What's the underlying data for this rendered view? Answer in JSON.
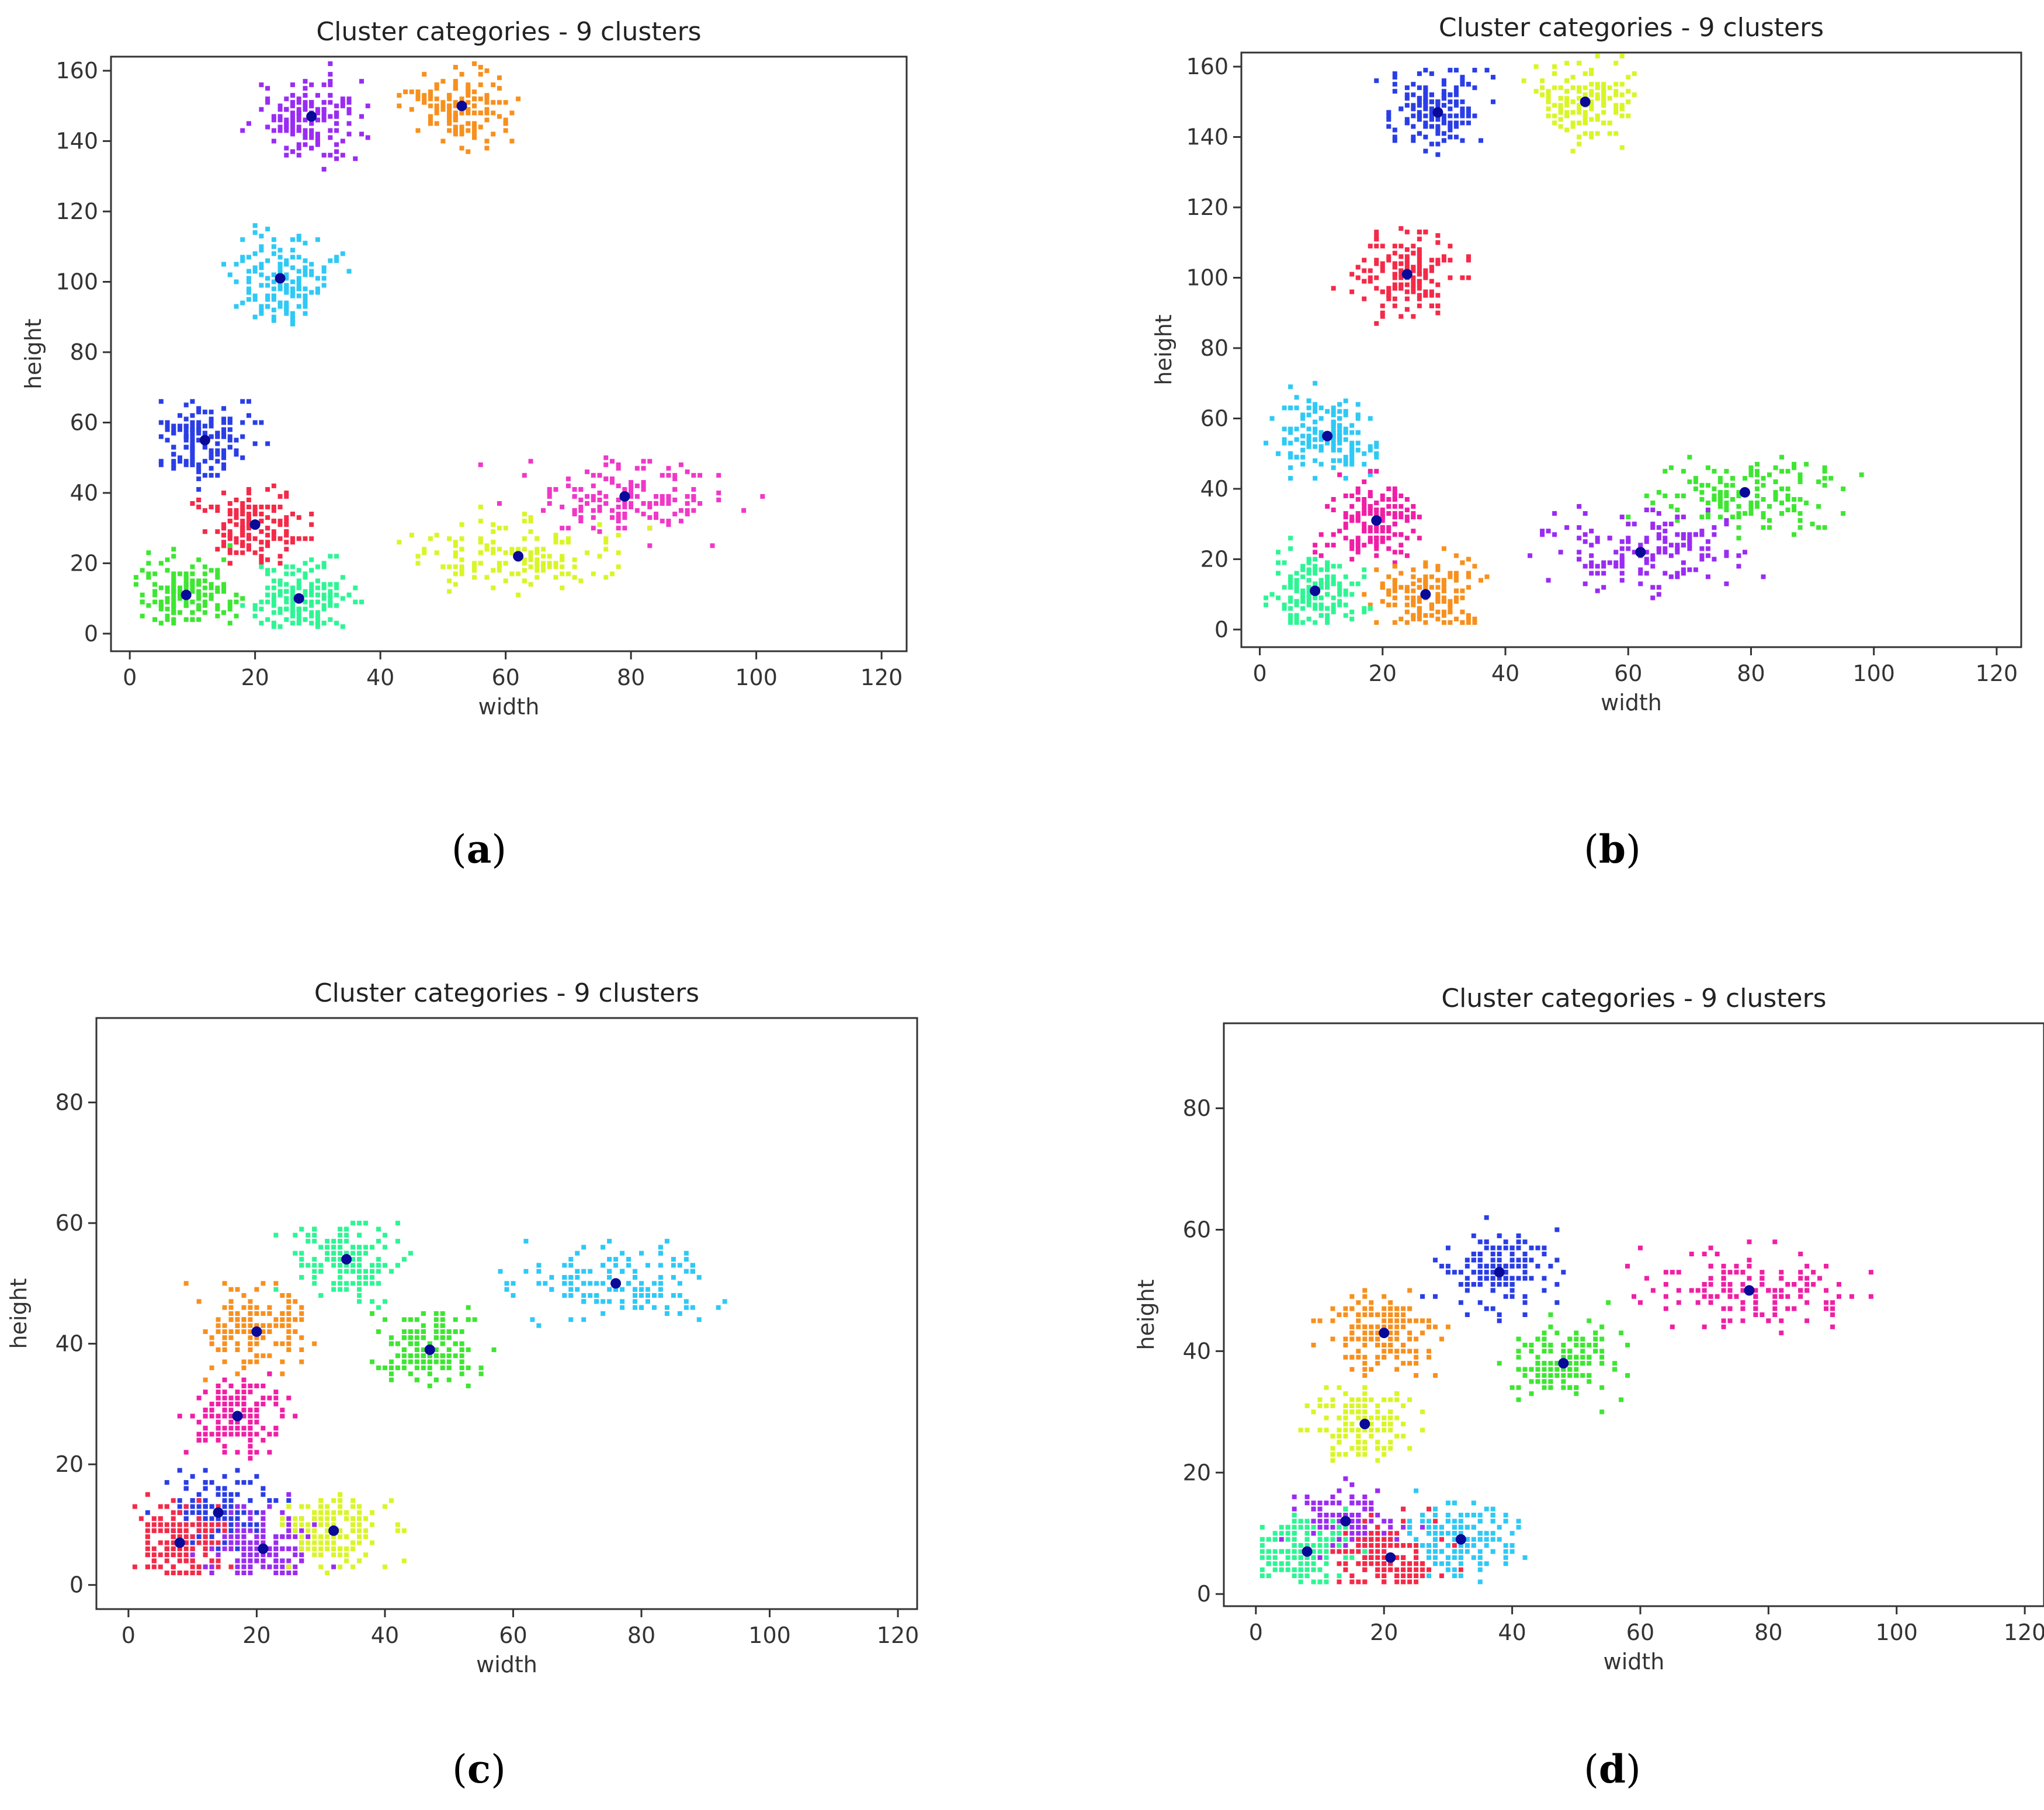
{
  "captions": {
    "a": {
      "open": "(",
      "letter": "a",
      "close": ")"
    },
    "b": {
      "open": "(",
      "letter": "b",
      "close": ")"
    },
    "c": {
      "open": "(",
      "letter": "c",
      "close": ")"
    },
    "d": {
      "open": "(",
      "letter": "d",
      "close": ")"
    }
  },
  "colors": {
    "blue": "#2a3ee6",
    "red": "#f42a48",
    "magenta": "#f038c8",
    "pink": "#f01fa6",
    "cyan": "#2fc9f5",
    "green": "#3ee632",
    "lime": "#d9f526",
    "orange": "#f7901e",
    "purple": "#9a2cf2",
    "mint": "#2ef594",
    "centroid": "#0a0a9a"
  },
  "chart_data": [
    {
      "id": "a",
      "type": "scatter",
      "title": "Cluster categories - 9 clusters",
      "xlabel": "width",
      "ylabel": "height",
      "xlim": [
        -3,
        124
      ],
      "ylim": [
        -5,
        164
      ],
      "xticks": [
        0,
        20,
        40,
        60,
        80,
        100,
        120
      ],
      "yticks": [
        0,
        20,
        40,
        60,
        80,
        100,
        120,
        140,
        160
      ],
      "clusters": [
        {
          "name": "purple",
          "color": "purple",
          "centroid": [
            29,
            147
          ]
        },
        {
          "name": "orange",
          "color": "orange",
          "centroid": [
            53,
            150
          ]
        },
        {
          "name": "cyan",
          "color": "cyan",
          "centroid": [
            24,
            101
          ]
        },
        {
          "name": "blue",
          "color": "blue",
          "centroid": [
            12,
            55
          ]
        },
        {
          "name": "red",
          "color": "red",
          "centroid": [
            20,
            31
          ]
        },
        {
          "name": "magenta",
          "color": "magenta",
          "centroid": [
            79,
            39
          ]
        },
        {
          "name": "lime",
          "color": "lime",
          "centroid": [
            62,
            22
          ]
        },
        {
          "name": "mint",
          "color": "mint",
          "centroid": [
            27,
            10
          ]
        },
        {
          "name": "green",
          "color": "green",
          "centroid": [
            9,
            11
          ]
        }
      ]
    },
    {
      "id": "b",
      "type": "scatter",
      "title": "Cluster categories - 9 clusters",
      "xlabel": "width",
      "ylabel": "height",
      "xlim": [
        -3,
        124
      ],
      "ylim": [
        -5,
        164
      ],
      "xticks": [
        0,
        20,
        40,
        60,
        80,
        100,
        120
      ],
      "yticks": [
        0,
        20,
        40,
        60,
        80,
        100,
        120,
        140,
        160
      ],
      "clusters": [
        {
          "name": "blue",
          "color": "blue",
          "centroid": [
            29,
            147
          ]
        },
        {
          "name": "lime",
          "color": "lime",
          "centroid": [
            53,
            150
          ]
        },
        {
          "name": "red",
          "color": "red",
          "centroid": [
            24,
            101
          ]
        },
        {
          "name": "cyan",
          "color": "cyan",
          "centroid": [
            11,
            55
          ]
        },
        {
          "name": "pink",
          "color": "pink",
          "centroid": [
            19,
            31
          ]
        },
        {
          "name": "green",
          "color": "green",
          "centroid": [
            79,
            39
          ]
        },
        {
          "name": "purple",
          "color": "purple",
          "centroid": [
            62,
            22
          ]
        },
        {
          "name": "orange",
          "color": "orange",
          "centroid": [
            27,
            10
          ]
        },
        {
          "name": "mint",
          "color": "mint",
          "centroid": [
            9,
            11
          ]
        }
      ]
    },
    {
      "id": "c",
      "type": "scatter",
      "title": "Cluster categories - 9 clusters",
      "xlabel": "width",
      "ylabel": "height",
      "xlim": [
        -5,
        123
      ],
      "ylim": [
        -4,
        94
      ],
      "xticks": [
        0,
        20,
        40,
        60,
        80,
        100,
        120
      ],
      "yticks": [
        0,
        20,
        40,
        60,
        80
      ],
      "clusters": [
        {
          "name": "cyan",
          "color": "cyan",
          "centroid": [
            76,
            50
          ]
        },
        {
          "name": "mint",
          "color": "mint",
          "centroid": [
            34,
            54
          ]
        },
        {
          "name": "green",
          "color": "green",
          "centroid": [
            47,
            39
          ]
        },
        {
          "name": "orange",
          "color": "orange",
          "centroid": [
            20,
            42
          ]
        },
        {
          "name": "pink",
          "color": "pink",
          "centroid": [
            17,
            28
          ]
        },
        {
          "name": "blue",
          "color": "blue",
          "centroid": [
            14,
            12
          ]
        },
        {
          "name": "red",
          "color": "red",
          "centroid": [
            8,
            7
          ]
        },
        {
          "name": "purple",
          "color": "purple",
          "centroid": [
            21,
            6
          ]
        },
        {
          "name": "lime",
          "color": "lime",
          "centroid": [
            32,
            9
          ]
        }
      ]
    },
    {
      "id": "d",
      "type": "scatter",
      "title": "Cluster categories - 9 clusters",
      "xlabel": "width",
      "ylabel": "height",
      "xlim": [
        -5,
        123
      ],
      "ylim": [
        -2,
        94
      ],
      "xticks": [
        0,
        20,
        40,
        60,
        80,
        100,
        120
      ],
      "yticks": [
        0,
        20,
        40,
        60,
        80
      ],
      "clusters": [
        {
          "name": "magenta",
          "color": "pink",
          "centroid": [
            77,
            50
          ]
        },
        {
          "name": "blue",
          "color": "blue",
          "centroid": [
            38,
            53
          ]
        },
        {
          "name": "green",
          "color": "green",
          "centroid": [
            48,
            38
          ]
        },
        {
          "name": "orange",
          "color": "orange",
          "centroid": [
            20,
            43
          ]
        },
        {
          "name": "lime",
          "color": "lime",
          "centroid": [
            17,
            28
          ]
        },
        {
          "name": "purple",
          "color": "purple",
          "centroid": [
            14,
            12
          ]
        },
        {
          "name": "mint",
          "color": "mint",
          "centroid": [
            8,
            7
          ]
        },
        {
          "name": "red",
          "color": "red",
          "centroid": [
            21,
            6
          ]
        },
        {
          "name": "cyan",
          "color": "cyan",
          "centroid": [
            32,
            9
          ]
        }
      ]
    }
  ]
}
